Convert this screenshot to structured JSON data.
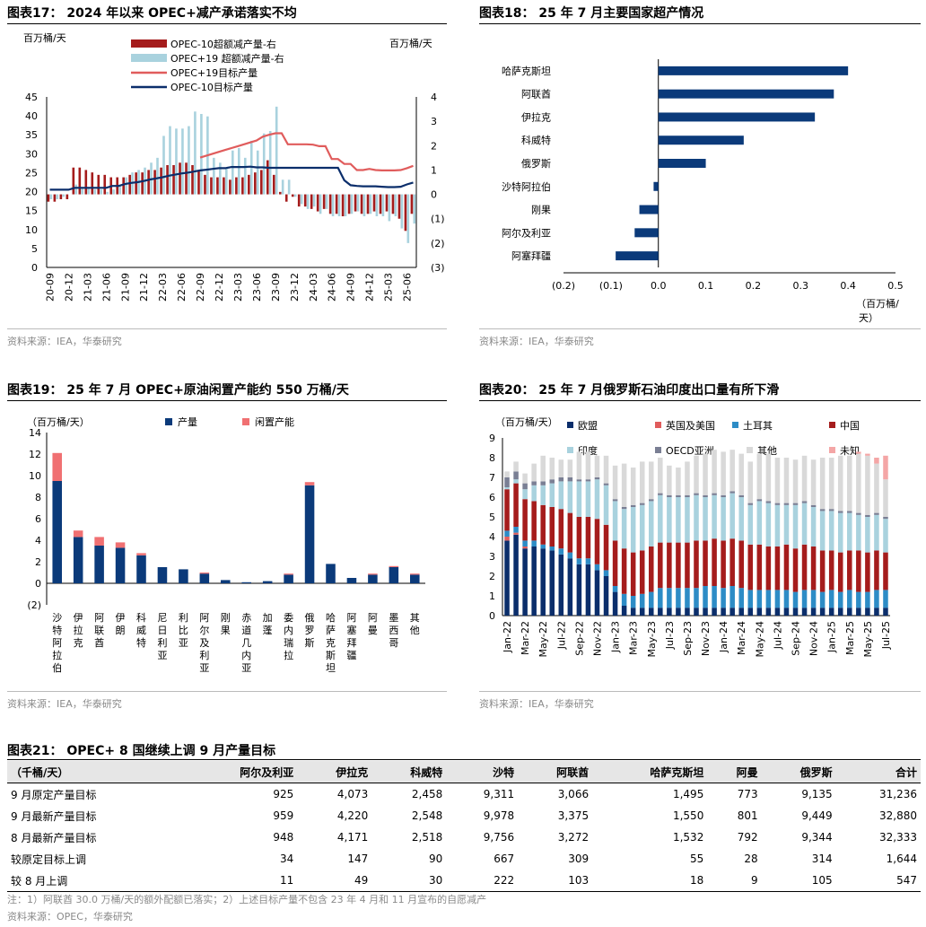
{
  "charts": {
    "c17": {
      "title": "图表17：  2024 年以来 OPEC+减产承诺落实不均",
      "source": "资料来源：IEA，华泰研究",
      "yl_unit": "百万桶/天",
      "yr_unit": "百万桶/天"
    },
    "c18": {
      "title": "图表18：  25 年 7 月主要国家超产情况",
      "source": "资料来源：IEA，华泰研究",
      "unit_a": "（百万桶/",
      "unit_b": "天）"
    },
    "c19": {
      "title": "图表19：  25 年 7 月 OPEC+原油闲置产能约 550 万桶/天",
      "source": "资料来源：IEA，华泰研究",
      "unit": "（百万桶/天）"
    },
    "c20": {
      "title": "图表20：  25 年 7 月俄罗斯石油印度出口量有所下滑",
      "source": "资料来源：IEA，华泰研究",
      "unit": "（百万桶/天）"
    }
  },
  "chart_data": [
    {
      "id": "c17",
      "type": "bar+line",
      "x": [
        "20-09",
        "20-10",
        "20-11",
        "20-12",
        "21-01",
        "21-02",
        "21-03",
        "21-04",
        "21-05",
        "21-06",
        "21-07",
        "21-08",
        "21-09",
        "21-10",
        "21-11",
        "21-12",
        "22-01",
        "22-02",
        "22-03",
        "22-04",
        "22-05",
        "22-06",
        "22-07",
        "22-08",
        "22-09",
        "22-10",
        "22-11",
        "22-12",
        "23-01",
        "23-02",
        "23-03",
        "23-04",
        "23-05",
        "23-06",
        "23-07",
        "23-08",
        "23-09",
        "23-10",
        "23-11",
        "23-12",
        "24-01",
        "24-02",
        "24-03",
        "24-04",
        "24-05",
        "24-06",
        "24-07",
        "24-08",
        "24-09",
        "24-10",
        "24-11",
        "24-12",
        "25-01",
        "25-02",
        "25-03",
        "25-04",
        "25-05",
        "25-06",
        "25-07"
      ],
      "xticks": [
        "20-09",
        "20-12",
        "21-03",
        "21-06",
        "21-09",
        "21-12",
        "22-03",
        "22-06",
        "22-09",
        "22-12",
        "23-03",
        "23-06",
        "23-09",
        "23-12",
        "24-03",
        "24-06",
        "24-09",
        "24-12",
        "25-03",
        "25-06"
      ],
      "yleft": {
        "min": 0,
        "max": 45,
        "step": 5
      },
      "yright": {
        "min": -3,
        "max": 4,
        "step": 1,
        "labels": [
          "(3)",
          "(2)",
          "(1)",
          "0",
          "1",
          "2",
          "3",
          "4"
        ]
      },
      "series": [
        {
          "name": "OPEC-10超额减产量-右",
          "type": "bar",
          "axis": "right",
          "color": "#a51c1c",
          "values": [
            -0.3,
            -0.3,
            -0.2,
            -0.2,
            1.1,
            1.1,
            1.0,
            0.9,
            0.8,
            0.8,
            0.7,
            0.7,
            0.7,
            0.8,
            0.9,
            0.9,
            1.0,
            1.0,
            1.1,
            1.2,
            1.2,
            1.3,
            1.3,
            1.2,
            1.0,
            0.8,
            0.7,
            0.7,
            0.7,
            0.6,
            0.7,
            0.7,
            0.8,
            0.9,
            1.0,
            1.4,
            0.8,
            0.1,
            -0.3,
            -0.1,
            -0.5,
            -0.5,
            -0.6,
            -0.7,
            -0.6,
            -0.8,
            -0.8,
            -0.9,
            -0.8,
            -0.7,
            -0.8,
            -0.8,
            -0.7,
            -0.8,
            -0.7,
            -0.8,
            -1.0,
            -1.5,
            -0.8
          ]
        },
        {
          "name": "OPEC+19 超额减产量-右",
          "type": "bar",
          "axis": "right",
          "color": "#a9d2de",
          "values": [
            -0.2,
            -0.2,
            -0.1,
            0.0,
            0.4,
            0.3,
            0.3,
            0.2,
            0.2,
            0.1,
            0.2,
            0.4,
            0.7,
            0.9,
            1.0,
            1.1,
            1.3,
            1.5,
            2.4,
            2.8,
            2.7,
            2.7,
            2.8,
            3.4,
            3.3,
            3.2,
            1.5,
            1.3,
            1.1,
            1.8,
            1.9,
            1.5,
            2.2,
            1.8,
            2.5,
            2.6,
            3.6,
            0.6,
            0.6,
            -0.1,
            -0.4,
            -0.6,
            -0.5,
            -0.8,
            -0.6,
            -0.9,
            -0.9,
            -0.9,
            -0.8,
            -0.7,
            -0.9,
            -0.8,
            -0.9,
            -0.9,
            -1.1,
            -0.9,
            -1.4,
            -2.0,
            -1.2
          ]
        },
        {
          "name": "OPEC+19目标产量",
          "type": "line",
          "axis": "left",
          "color": "#e05c5c",
          "values": [
            null,
            null,
            null,
            null,
            null,
            null,
            null,
            null,
            null,
            null,
            null,
            null,
            null,
            null,
            null,
            null,
            null,
            null,
            null,
            null,
            null,
            null,
            null,
            null,
            29,
            29.5,
            30,
            30.5,
            31,
            31.5,
            32,
            32.5,
            33,
            33.5,
            34.5,
            35,
            35.4,
            35.4,
            32.5,
            32.5,
            32.5,
            32.5,
            32.4,
            32.0,
            32.0,
            28.6,
            28.6,
            27.3,
            27.3,
            25.7,
            25.7,
            26.0,
            25.7,
            25.6,
            25.6,
            25.6,
            25.7,
            26.2,
            26.8
          ]
        },
        {
          "name": "OPEC-10目标产量",
          "type": "line",
          "axis": "left",
          "color": "#0b2e6b",
          "values": [
            20.5,
            20.5,
            20.5,
            20.5,
            21,
            21,
            21,
            21,
            21,
            21,
            21.5,
            21.5,
            22,
            22.3,
            22.5,
            22.8,
            23.2,
            23.5,
            23.8,
            24.2,
            24.5,
            24.8,
            25,
            25.3,
            25.6,
            25.8,
            26,
            26.2,
            26.2,
            26.5,
            26.5,
            26.5,
            26.6,
            26.4,
            26.4,
            26.3,
            26.3,
            26.3,
            26.3,
            26.3,
            26.3,
            26.3,
            26.3,
            26.3,
            26.3,
            26.3,
            26.3,
            23.0,
            21.7,
            21.5,
            21.4,
            21.4,
            21.4,
            21.3,
            21.2,
            21.2,
            21.3,
            21.9,
            22.4
          ]
        }
      ]
    },
    {
      "id": "c18",
      "type": "bar",
      "orientation": "horizontal",
      "categories": [
        "哈萨克斯坦",
        "阿联酋",
        "伊拉克",
        "科威特",
        "俄罗斯",
        "沙特阿拉伯",
        "刚果",
        "阿尔及利亚",
        "阿塞拜疆"
      ],
      "values": [
        0.4,
        0.37,
        0.33,
        0.18,
        0.1,
        -0.01,
        -0.04,
        -0.05,
        -0.09
      ],
      "xlim": [
        -0.2,
        0.5
      ],
      "xticks": [
        "(0.2)",
        "(0.1)",
        "0.0",
        "0.1",
        "0.2",
        "0.3",
        "0.4",
        "0.5"
      ],
      "color": "#0b3a7a"
    },
    {
      "id": "c19",
      "type": "bar",
      "stacked": true,
      "categories": [
        "沙特阿拉伯",
        "伊拉克",
        "阿联酋",
        "伊朗",
        "科威特",
        "尼日利亚",
        "利比亚",
        "阿尔及利亚",
        "刚果",
        "赤道几内亚",
        "加蓬",
        "委内瑞拉",
        "俄罗斯",
        "哈萨克斯坦",
        "阿塞拜疆",
        "阿曼",
        "墨西哥",
        "其他"
      ],
      "ylim": [
        -2,
        14
      ],
      "yticks": [
        "(2)",
        "0",
        "2",
        "4",
        "6",
        "8",
        "10",
        "12",
        "14"
      ],
      "series": [
        {
          "name": "产量",
          "color": "#0b3a7a",
          "values": [
            9.5,
            4.3,
            3.5,
            3.3,
            2.6,
            1.5,
            1.3,
            0.9,
            0.3,
            0.1,
            0.2,
            0.8,
            9.1,
            1.8,
            0.5,
            0.8,
            1.5,
            0.8
          ]
        },
        {
          "name": "闲置产能",
          "color": "#f07072",
          "values": [
            2.6,
            0.6,
            0.8,
            0.5,
            0.2,
            0.0,
            0.0,
            0.1,
            0.0,
            0.0,
            0.0,
            0.1,
            0.3,
            0.0,
            0.0,
            0.1,
            0.1,
            0.1
          ]
        }
      ]
    },
    {
      "id": "c20",
      "type": "bar",
      "stacked": true,
      "ylim": [
        0,
        9
      ],
      "yticks": [
        "0",
        "1",
        "2",
        "3",
        "4",
        "5",
        "6",
        "7",
        "8",
        "9"
      ],
      "xticks": [
        "Jan-22",
        "Mar-22",
        "May-22",
        "Jul-22",
        "Sep-22",
        "Nov-22",
        "Jan-23",
        "Mar-23",
        "May-23",
        "Jul-23",
        "Sep-23",
        "Nov-23",
        "Jan-24",
        "Mar-24",
        "May-24",
        "Jul-24",
        "Sep-24",
        "Nov-24",
        "Jan-25",
        "Mar-25",
        "May-25",
        "Jul-25"
      ],
      "series": [
        {
          "name": "欧盟",
          "color": "#0b2e6b",
          "values": [
            3.8,
            4.1,
            3.4,
            3.5,
            3.4,
            3.3,
            3.1,
            2.9,
            2.6,
            2.6,
            2.3,
            2.0,
            1.2,
            0.5,
            0.4,
            0.4,
            0.4,
            0.4,
            0.4,
            0.4,
            0.4,
            0.4,
            0.4,
            0.4,
            0.4,
            0.4,
            0.4,
            0.4,
            0.4,
            0.4,
            0.4,
            0.4,
            0.4,
            0.4,
            0.4,
            0.4,
            0.4,
            0.4,
            0.4,
            0.4,
            0.4,
            0.4,
            0.4
          ]
        },
        {
          "name": "英国及美国",
          "color": "#e05c5c",
          "values": [
            0.2,
            0.1,
            0.1,
            0.0,
            0.0,
            0.0,
            0.0,
            0.0,
            0.0,
            0.0,
            0.0,
            0.0,
            0.0,
            0.0,
            0.0,
            0.0,
            0.0,
            0.0,
            0.0,
            0.0,
            0.0,
            0.0,
            0.0,
            0.0,
            0.0,
            0.0,
            0.0,
            0.0,
            0.0,
            0.0,
            0.0,
            0.0,
            0.0,
            0.0,
            0.0,
            0.0,
            0.0,
            0.0,
            0.0,
            0.0,
            0.0,
            0.0,
            0.0
          ]
        },
        {
          "name": "土耳其",
          "color": "#2d8cc6",
          "values": [
            0.3,
            0.3,
            0.3,
            0.3,
            0.2,
            0.2,
            0.3,
            0.3,
            0.3,
            0.3,
            0.3,
            0.3,
            0.3,
            0.6,
            0.6,
            0.7,
            0.8,
            1.0,
            1.0,
            1.0,
            1.0,
            1.0,
            1.1,
            1.1,
            1.0,
            1.1,
            1.0,
            0.9,
            0.9,
            0.9,
            0.9,
            0.9,
            0.8,
            0.9,
            0.9,
            0.8,
            0.9,
            0.8,
            0.9,
            0.8,
            0.8,
            0.9,
            0.9
          ]
        },
        {
          "name": "中国",
          "color": "#a51c1c",
          "values": [
            2.1,
            2.2,
            2.1,
            2.0,
            2.0,
            2.0,
            2.0,
            2.0,
            2.1,
            2.1,
            2.3,
            2.3,
            2.3,
            2.3,
            2.2,
            2.2,
            2.3,
            2.3,
            2.3,
            2.3,
            2.3,
            2.4,
            2.3,
            2.4,
            2.4,
            2.4,
            2.4,
            2.3,
            2.3,
            2.2,
            2.2,
            2.3,
            2.2,
            2.3,
            2.2,
            2.1,
            2.0,
            2.0,
            2.0,
            2.1,
            2.0,
            2.0,
            1.9
          ]
        },
        {
          "name": "印度",
          "color": "#a9d2de",
          "values": [
            0.1,
            0.2,
            0.5,
            0.8,
            1.0,
            1.2,
            1.4,
            1.6,
            1.8,
            1.8,
            2.0,
            2.0,
            2.0,
            2.0,
            2.3,
            2.3,
            2.3,
            2.4,
            2.3,
            2.3,
            2.3,
            2.3,
            2.2,
            2.2,
            2.2,
            2.3,
            2.2,
            2.0,
            2.2,
            2.2,
            2.1,
            2.0,
            2.2,
            2.1,
            2.0,
            2.0,
            2.0,
            2.0,
            1.9,
            1.8,
            1.8,
            1.8,
            1.7
          ]
        },
        {
          "name": "OECD亚洲",
          "color": "#7a7f94",
          "values": [
            0.5,
            0.4,
            0.3,
            0.2,
            0.2,
            0.2,
            0.2,
            0.2,
            0.1,
            0.1,
            0.1,
            0.1,
            0.1,
            0.1,
            0.1,
            0.1,
            0.1,
            0.1,
            0.1,
            0.1,
            0.1,
            0.1,
            0.1,
            0.1,
            0.1,
            0.1,
            0.1,
            0.1,
            0.1,
            0.1,
            0.1,
            0.1,
            0.1,
            0.1,
            0.1,
            0.1,
            0.1,
            0.1,
            0.1,
            0.1,
            0.1,
            0.1,
            0.1
          ]
        },
        {
          "name": "其他",
          "color": "#d9d9d9",
          "values": [
            0.3,
            0.5,
            0.5,
            0.9,
            1.3,
            1.1,
            0.9,
            0.9,
            1.4,
            1.4,
            1.1,
            1.4,
            1.7,
            2.2,
            1.9,
            2.1,
            1.9,
            1.8,
            1.5,
            1.4,
            1.7,
            1.9,
            2.1,
            2.2,
            2.2,
            2.1,
            2.1,
            2.1,
            2.3,
            2.4,
            2.3,
            2.3,
            2.2,
            2.3,
            2.3,
            2.6,
            2.6,
            2.8,
            2.8,
            3.0,
            3.0,
            2.5,
            1.9
          ]
        },
        {
          "name": "未知",
          "color": "#f4a6a6",
          "values": [
            0,
            0,
            0,
            0,
            0,
            0,
            0,
            0,
            0,
            0,
            0,
            0,
            0,
            0,
            0,
            0,
            0,
            0,
            0,
            0,
            0,
            0,
            0,
            0,
            0,
            0,
            0,
            0,
            0,
            0,
            0,
            0,
            0,
            0,
            0,
            0,
            0,
            0,
            0,
            0.1,
            0.1,
            0.3,
            1.2
          ]
        }
      ]
    }
  ],
  "table21": {
    "title": "图表21：  OPEC+ 8 国继续上调 9 月产量目标",
    "header": [
      "（千桶/天）",
      "阿尔及利亚",
      "伊拉克",
      "科威特",
      "沙特",
      "阿联酋",
      "哈萨克斯坦",
      "阿曼",
      "俄罗斯",
      "合计"
    ],
    "rows": [
      [
        "9 月原定产量目标",
        "925",
        "4,073",
        "2,458",
        "9,311",
        "3,066",
        "1,495",
        "773",
        "9,135",
        "31,236"
      ],
      [
        "9 月最新产量目标",
        "959",
        "4,220",
        "2,548",
        "9,978",
        "3,375",
        "1,550",
        "801",
        "9,449",
        "32,880"
      ],
      [
        "8 月最新产量目标",
        "948",
        "4,171",
        "2,518",
        "9,756",
        "3,272",
        "1,532",
        "792",
        "9,344",
        "32,333"
      ],
      [
        "较原定目标上调",
        "34",
        "147",
        "90",
        "667",
        "309",
        "55",
        "28",
        "314",
        "1,644"
      ],
      [
        "较 8 月上调",
        "11",
        "49",
        "30",
        "222",
        "103",
        "18",
        "9",
        "105",
        "547"
      ]
    ],
    "note": "注：1）阿联酋 30.0 万桶/天的额外配额已落实；2）上述目标产量不包含 23 年 4 月和 11 月宣布的自愿减产",
    "source": "资料来源：OPEC，华泰研究"
  }
}
